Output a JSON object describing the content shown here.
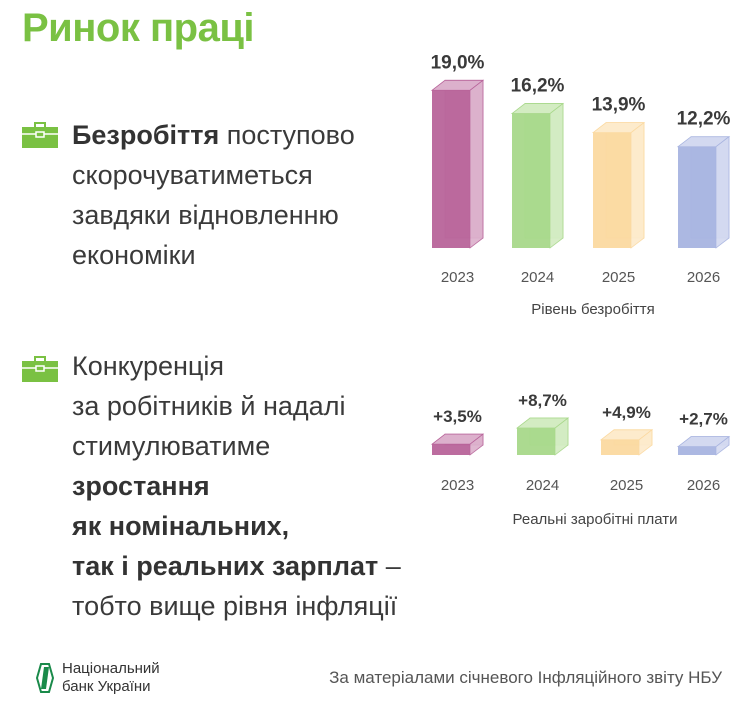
{
  "title": "Ринок праці",
  "block1": {
    "bold": "Безробіття",
    "lines": [
      " поступово",
      "скорочуватиметься",
      "завдяки відновленню",
      "економіки"
    ]
  },
  "block2": {
    "lines": [
      "Конкуренція",
      "за робітників й надалі",
      "стимулюватиме"
    ],
    "bold_lines": [
      "зростання",
      "як номінальних,",
      "так і реальних зарплат"
    ],
    "tail": " –",
    "last": "тобто вище рівня інфляції"
  },
  "icons": [
    "briefcase-icon",
    "briefcase-icon"
  ],
  "colors": {
    "title": "#7ac143",
    "bars": [
      "#b8649a",
      "#a8d88a",
      "#fbd9a0",
      "#a8b4e0"
    ],
    "backs": [
      "#dcb0cc",
      "#d3ecc2",
      "#fdebcc",
      "#d3d9f0"
    ]
  },
  "chart_data": [
    {
      "type": "bar",
      "title": "Рівень безробіття",
      "categories": [
        "2023",
        "2024",
        "2025",
        "2026"
      ],
      "values": [
        19.0,
        16.2,
        13.9,
        12.2
      ],
      "labels": [
        "19,0%",
        "16,2%",
        "13,9%",
        "12,2%"
      ],
      "unit": "%"
    },
    {
      "type": "bar",
      "title": "Реальні заробітні плати",
      "categories": [
        "2023",
        "2024",
        "2025",
        "2026"
      ],
      "values": [
        3.5,
        8.7,
        4.9,
        2.7
      ],
      "labels": [
        "+3,5%",
        "+8,7%",
        "+4,9%",
        "+2,7%"
      ],
      "unit": "%"
    }
  ],
  "footer": {
    "logo_line1": "Національний",
    "logo_line2": "банк України",
    "source": "За матеріалами січневого Інфляційного звіту НБУ"
  }
}
